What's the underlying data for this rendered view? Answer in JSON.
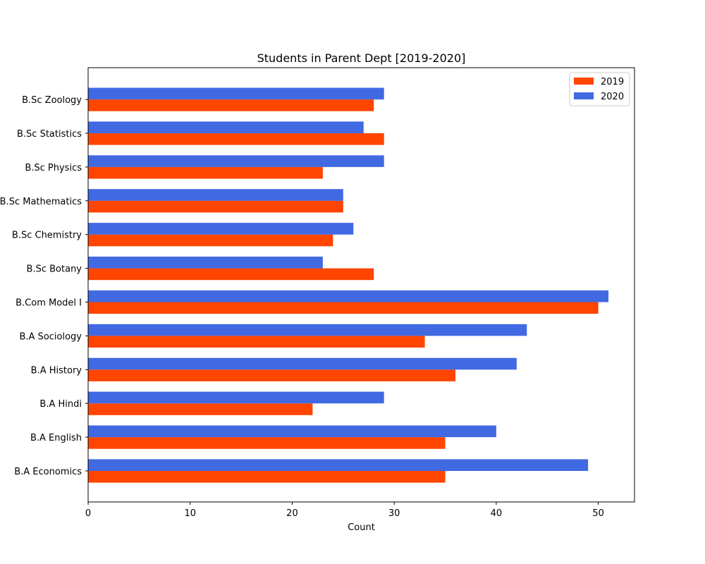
{
  "chart_data": {
    "type": "bar",
    "orientation": "horizontal",
    "title": "Students in Parent Dept [2019-2020]",
    "xlabel": "Count",
    "ylabel": "",
    "xlim": [
      0,
      53.55
    ],
    "x_ticks": [
      0,
      10,
      20,
      30,
      40,
      50
    ],
    "categories": [
      "B.A Economics",
      "B.A English",
      "B.A Hindi",
      "B.A History",
      "B.A Sociology",
      "B.Com Model I",
      "B.Sc Botany",
      "B.Sc Chemistry",
      "B.Sc Mathematics",
      "B.Sc Physics",
      "B.Sc Statistics",
      "B.Sc Zoology"
    ],
    "series": [
      {
        "name": "2019",
        "color": "#ff4500",
        "values": [
          35,
          35,
          22,
          36,
          33,
          50,
          28,
          24,
          25,
          23,
          29,
          28
        ]
      },
      {
        "name": "2020",
        "color": "#4169e1",
        "values": [
          49,
          40,
          29,
          42,
          43,
          51,
          23,
          26,
          25,
          29,
          27,
          29
        ]
      }
    ],
    "legend_position": "top-right",
    "grid": false
  }
}
